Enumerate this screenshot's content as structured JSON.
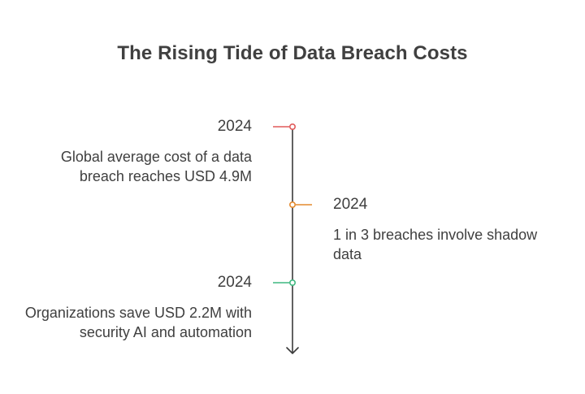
{
  "title": "The Rising Tide of Data Breach Costs",
  "events": [
    {
      "year": "2024",
      "description": "Global average cost of a data breach reaches USD 4.9M",
      "side": "left",
      "color": "#e05a5a"
    },
    {
      "year": "2024",
      "description": "1 in 3 breaches involve shadow data",
      "side": "right",
      "color": "#e38a2e"
    },
    {
      "year": "2024",
      "description": "Organizations save USD 2.2M with security AI and automation",
      "side": "left",
      "color": "#3fb880"
    }
  ],
  "axis_color": "#3a3a3a"
}
